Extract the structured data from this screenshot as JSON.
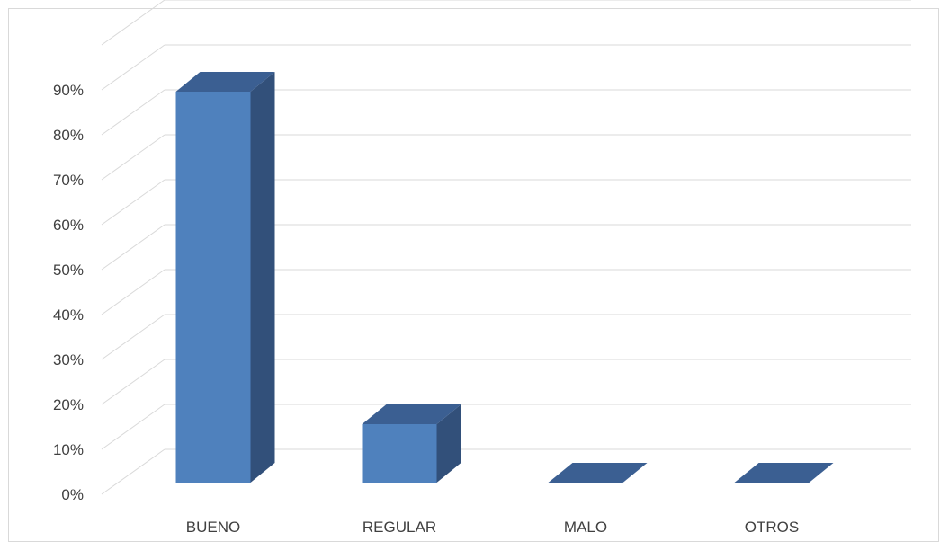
{
  "chart_data": {
    "type": "bar",
    "style": "3d-column",
    "categories": [
      "BUENO",
      "REGULAR",
      "MALO",
      "OTROS"
    ],
    "values": [
      0.87,
      0.13,
      0.0,
      0.0
    ],
    "ylim": [
      0,
      0.9
    ],
    "yticks": [
      0,
      0.1,
      0.2,
      0.3,
      0.4,
      0.5,
      0.6,
      0.7,
      0.8,
      0.9
    ],
    "ytick_labels": [
      "0%",
      "10%",
      "20%",
      "30%",
      "40%",
      "50%",
      "60%",
      "70%",
      "80%",
      "90%"
    ],
    "grid": true,
    "legend": "none",
    "title": "",
    "xlabel": "",
    "ylabel": "",
    "colors": {
      "bar_front": "#4f81bd",
      "bar_side": "#32507a",
      "bar_top": "#3b5f92",
      "gridline": "#d9d9d9",
      "text": "#404040"
    }
  }
}
